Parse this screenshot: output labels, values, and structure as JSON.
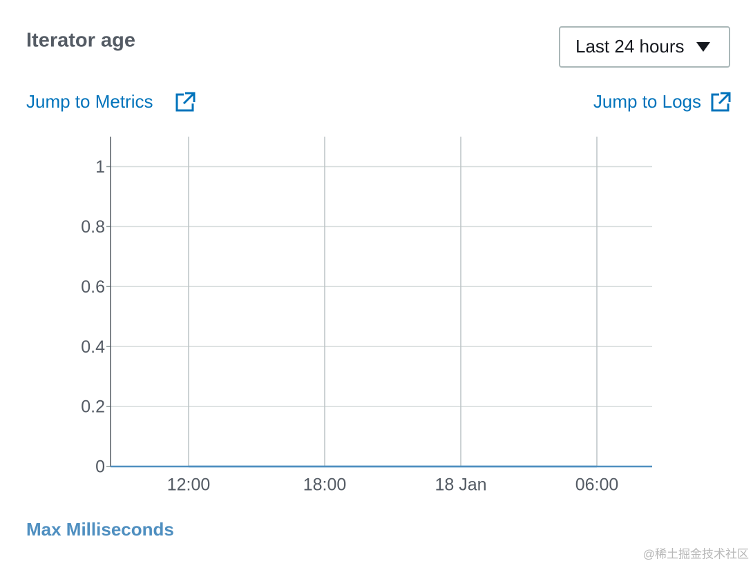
{
  "header": {
    "title": "Iterator age",
    "range_button": "Last 24 hours"
  },
  "links": {
    "metrics": "Jump to Metrics",
    "logs": "Jump to Logs"
  },
  "chart_data": {
    "type": "line",
    "categories": [
      "12:00",
      "18:00",
      "18 Jan",
      "06:00"
    ],
    "series": [
      {
        "name": "Max Milliseconds",
        "color": "#4f8fc0",
        "values": [
          0,
          0,
          0,
          0
        ]
      }
    ],
    "ylim": [
      0,
      1.1
    ],
    "yticks": [
      0,
      0.2,
      0.4,
      0.6,
      0.8,
      1
    ],
    "grid": true
  },
  "watermark": "@稀土掘金技术社区"
}
